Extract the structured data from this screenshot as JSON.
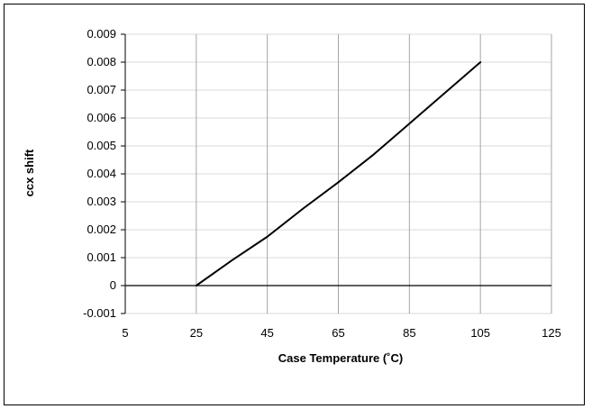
{
  "chart_data": {
    "type": "line",
    "title": "",
    "xlabel": "Case Temperature (˚C)",
    "ylabel": "ccx shift",
    "xlim": [
      5,
      125
    ],
    "ylim": [
      -0.001,
      0.009
    ],
    "xticks": [
      5,
      25,
      45,
      65,
      85,
      105,
      125
    ],
    "xtick_labels": [
      "5",
      "25",
      "45",
      "65",
      "85",
      "105",
      "125"
    ],
    "yticks": [
      -0.001,
      0,
      0.001,
      0.002,
      0.003,
      0.004,
      0.005,
      0.006,
      0.007,
      0.008,
      0.009
    ],
    "ytick_labels": [
      "-0.001",
      "0",
      "0.001",
      "0.002",
      "0.003",
      "0.004",
      "0.005",
      "0.006",
      "0.007",
      "0.008",
      "0.009"
    ],
    "grid": {
      "vertical": true,
      "horizontal": true
    },
    "legend": "none",
    "series": [
      {
        "x": [
          25,
          35,
          45,
          55,
          65,
          75,
          85,
          95,
          105
        ],
        "y": [
          0,
          0.0009,
          0.00175,
          0.00275,
          0.0037,
          0.0047,
          0.0058,
          0.0069,
          0.008
        ],
        "color": "#000000"
      }
    ]
  }
}
